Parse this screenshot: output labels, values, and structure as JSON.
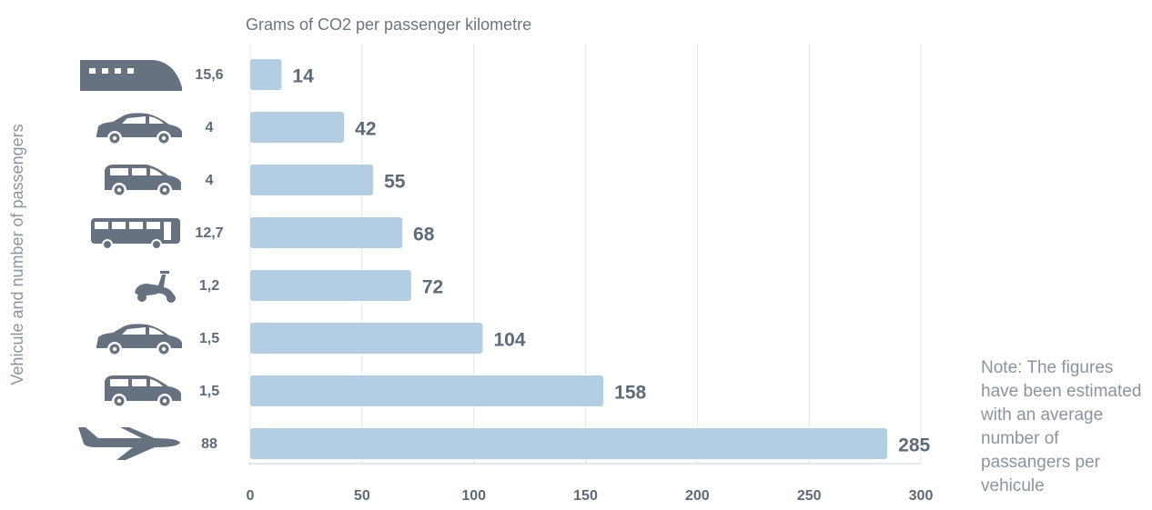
{
  "chart_data": {
    "type": "bar",
    "orientation": "horizontal",
    "title": "Grams of CO2 per passenger kilometre",
    "ylabel": "Vehicule and number of passengers",
    "note": "Note: The figures have been estimated with an average number of passangers per vehicule",
    "categories": [
      "15,6",
      "4",
      "4",
      "12,7",
      "1,2",
      "1,5",
      "1,5",
      "88"
    ],
    "values": [
      14,
      42,
      55,
      68,
      72,
      104,
      158,
      285
    ],
    "color": "#b3cde3",
    "xlim": [
      0,
      300
    ],
    "xticks": [
      0,
      50,
      100,
      150,
      200,
      250,
      300
    ],
    "grid": true
  }
}
